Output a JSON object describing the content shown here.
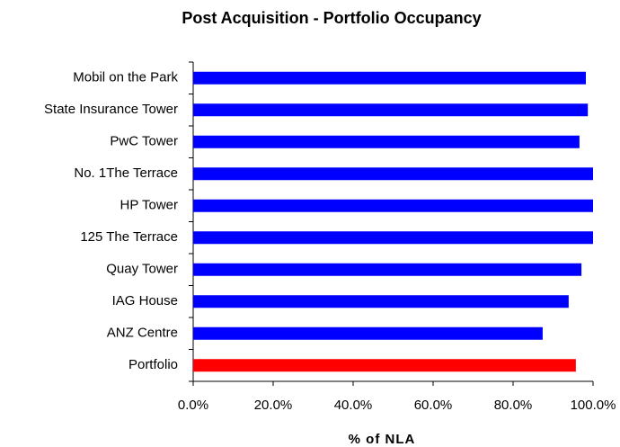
{
  "chart_data": {
    "type": "barh",
    "title": "Post Acquisition - Portfolio Occupancy",
    "x_label": "% of NLA",
    "categories": [
      "Mobil on the Park",
      "State Insurance Tower",
      "PwC Tower",
      "No. 1The Terrace",
      "HP Tower",
      "125 The Terrace",
      "Quay Tower",
      "IAG House",
      "ANZ Centre",
      "Portfolio"
    ],
    "values": [
      98.2,
      98.7,
      96.6,
      100,
      100,
      100,
      97.1,
      93.9,
      87.4,
      95.7
    ],
    "colors": [
      "#0000ff",
      "#0000ff",
      "#0000ff",
      "#0000ff",
      "#0000ff",
      "#0000ff",
      "#0000ff",
      "#0000ff",
      "#0000ff",
      "#ff0000"
    ],
    "xlim": [
      0,
      100
    ],
    "xticks": [
      {
        "value": 0,
        "label": "0.0%"
      },
      {
        "value": 20,
        "label": "20.0%"
      },
      {
        "value": 40,
        "label": "40.0%"
      },
      {
        "value": 60,
        "label": "60.0%"
      },
      {
        "value": 80,
        "label": "80.0%"
      },
      {
        "value": 100,
        "label": "100.0%"
      }
    ],
    "grid": false
  }
}
